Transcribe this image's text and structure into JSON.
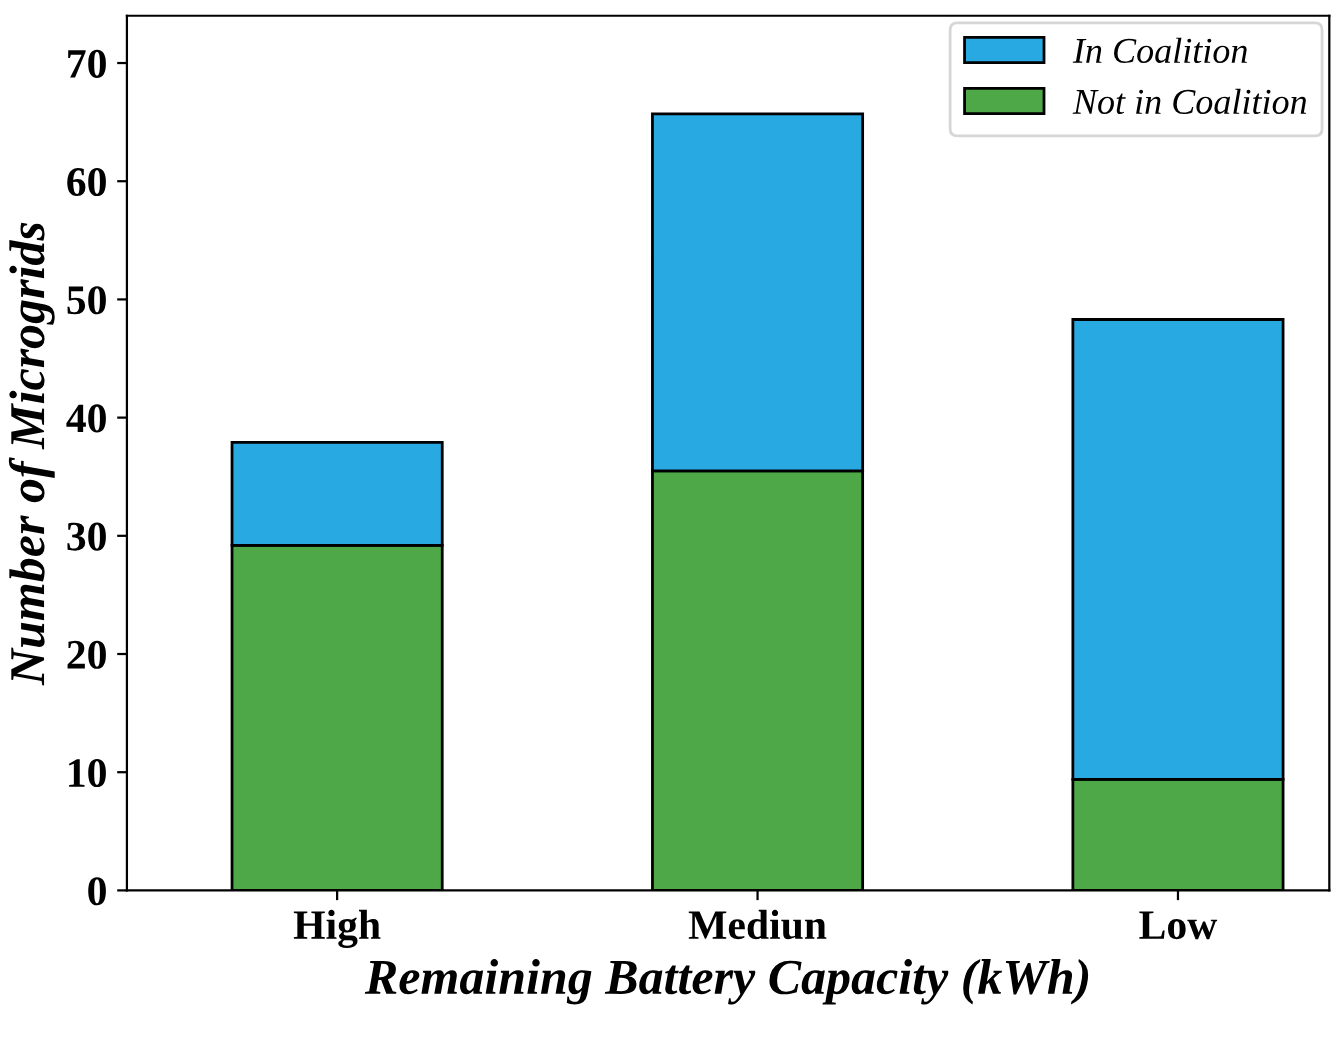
{
  "chart_data": {
    "type": "bar",
    "stacked": true,
    "xlabel": "Remaining Battery Capacity (kWh)",
    "ylabel": "Number of Microgrids",
    "categories": [
      "High",
      "Mediun",
      "Low"
    ],
    "series": [
      {
        "name": "Not in Coalition",
        "color": "#4ea847",
        "values": [
          29.2,
          35.5,
          9.4
        ]
      },
      {
        "name": "In Coalition",
        "color": "#29a9e1",
        "values": [
          8.7,
          30.2,
          38.9
        ]
      }
    ],
    "ylim": [
      0,
      74
    ],
    "yticks": [
      0,
      10,
      20,
      30,
      40,
      50,
      60,
      70
    ],
    "grid": false,
    "legend": "top right"
  }
}
